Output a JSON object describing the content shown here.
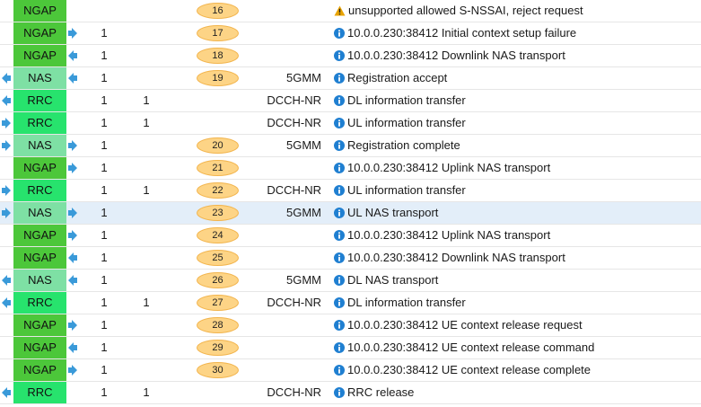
{
  "colors": {
    "NGAP": "#4cc73a",
    "NAS": "#7ee0a4",
    "RRC": "#27e36d",
    "badge": "#fdd486",
    "arrow": "#3a9ad9",
    "info": "#1f7fd1",
    "warning": "#e8a300"
  },
  "rows": [
    {
      "proto": "NGAP",
      "left_arrow": false,
      "right_arrow": "",
      "c1": "",
      "c2": "",
      "seq": "16",
      "layer": "",
      "icon": "warning",
      "msg": "unsupported allowed S-NSSAI, reject request"
    },
    {
      "proto": "NGAP",
      "left_arrow": false,
      "right_arrow": "right",
      "c1": "1",
      "c2": "",
      "seq": "17",
      "layer": "",
      "icon": "info",
      "msg": "10.0.0.230:38412 Initial context setup failure"
    },
    {
      "proto": "NGAP",
      "left_arrow": false,
      "right_arrow": "left",
      "c1": "1",
      "c2": "",
      "seq": "18",
      "layer": "",
      "icon": "info",
      "msg": "10.0.0.230:38412 Downlink NAS transport"
    },
    {
      "proto": "NAS",
      "left_arrow": true,
      "right_arrow": "left",
      "c1": "1",
      "c2": "",
      "seq": "19",
      "layer": "5GMM",
      "icon": "info",
      "msg": "Registration accept"
    },
    {
      "proto": "RRC",
      "left_arrow": true,
      "right_arrow": "",
      "c1": "1",
      "c2": "1",
      "seq": "",
      "layer": "DCCH-NR",
      "icon": "info",
      "msg": "DL information transfer"
    },
    {
      "proto": "RRC",
      "left_arrow": "right",
      "right_arrow": "",
      "c1": "1",
      "c2": "1",
      "seq": "",
      "layer": "DCCH-NR",
      "icon": "info",
      "msg": "UL information transfer"
    },
    {
      "proto": "NAS",
      "left_arrow": "right",
      "right_arrow": "right",
      "c1": "1",
      "c2": "",
      "seq": "20",
      "layer": "5GMM",
      "icon": "info",
      "msg": "Registration complete"
    },
    {
      "proto": "NGAP",
      "left_arrow": false,
      "right_arrow": "right",
      "c1": "1",
      "c2": "",
      "seq": "21",
      "layer": "",
      "icon": "info",
      "msg": "10.0.0.230:38412 Uplink NAS transport"
    },
    {
      "proto": "RRC",
      "left_arrow": "right",
      "right_arrow": "",
      "c1": "1",
      "c2": "1",
      "seq": "22",
      "layer": "DCCH-NR",
      "icon": "info",
      "msg": "UL information transfer"
    },
    {
      "proto": "NAS",
      "left_arrow": "right",
      "right_arrow": "right",
      "c1": "1",
      "c2": "",
      "seq": "23",
      "layer": "5GMM",
      "icon": "info",
      "msg": "UL NAS transport",
      "selected": true
    },
    {
      "proto": "NGAP",
      "left_arrow": false,
      "right_arrow": "right",
      "c1": "1",
      "c2": "",
      "seq": "24",
      "layer": "",
      "icon": "info",
      "msg": "10.0.0.230:38412 Uplink NAS transport"
    },
    {
      "proto": "NGAP",
      "left_arrow": false,
      "right_arrow": "left",
      "c1": "1",
      "c2": "",
      "seq": "25",
      "layer": "",
      "icon": "info",
      "msg": "10.0.0.230:38412 Downlink NAS transport"
    },
    {
      "proto": "NAS",
      "left_arrow": true,
      "right_arrow": "left",
      "c1": "1",
      "c2": "",
      "seq": "26",
      "layer": "5GMM",
      "icon": "info",
      "msg": "DL NAS transport"
    },
    {
      "proto": "RRC",
      "left_arrow": true,
      "right_arrow": "",
      "c1": "1",
      "c2": "1",
      "seq": "27",
      "layer": "DCCH-NR",
      "icon": "info",
      "msg": "DL information transfer"
    },
    {
      "proto": "NGAP",
      "left_arrow": false,
      "right_arrow": "right",
      "c1": "1",
      "c2": "",
      "seq": "28",
      "layer": "",
      "icon": "info",
      "msg": "10.0.0.230:38412 UE context release request"
    },
    {
      "proto": "NGAP",
      "left_arrow": false,
      "right_arrow": "left",
      "c1": "1",
      "c2": "",
      "seq": "29",
      "layer": "",
      "icon": "info",
      "msg": "10.0.0.230:38412 UE context release command"
    },
    {
      "proto": "NGAP",
      "left_arrow": false,
      "right_arrow": "right",
      "c1": "1",
      "c2": "",
      "seq": "30",
      "layer": "",
      "icon": "info",
      "msg": "10.0.0.230:38412 UE context release complete"
    },
    {
      "proto": "RRC",
      "left_arrow": true,
      "right_arrow": "",
      "c1": "1",
      "c2": "1",
      "seq": "",
      "layer": "DCCH-NR",
      "icon": "info",
      "msg": "RRC release"
    }
  ]
}
